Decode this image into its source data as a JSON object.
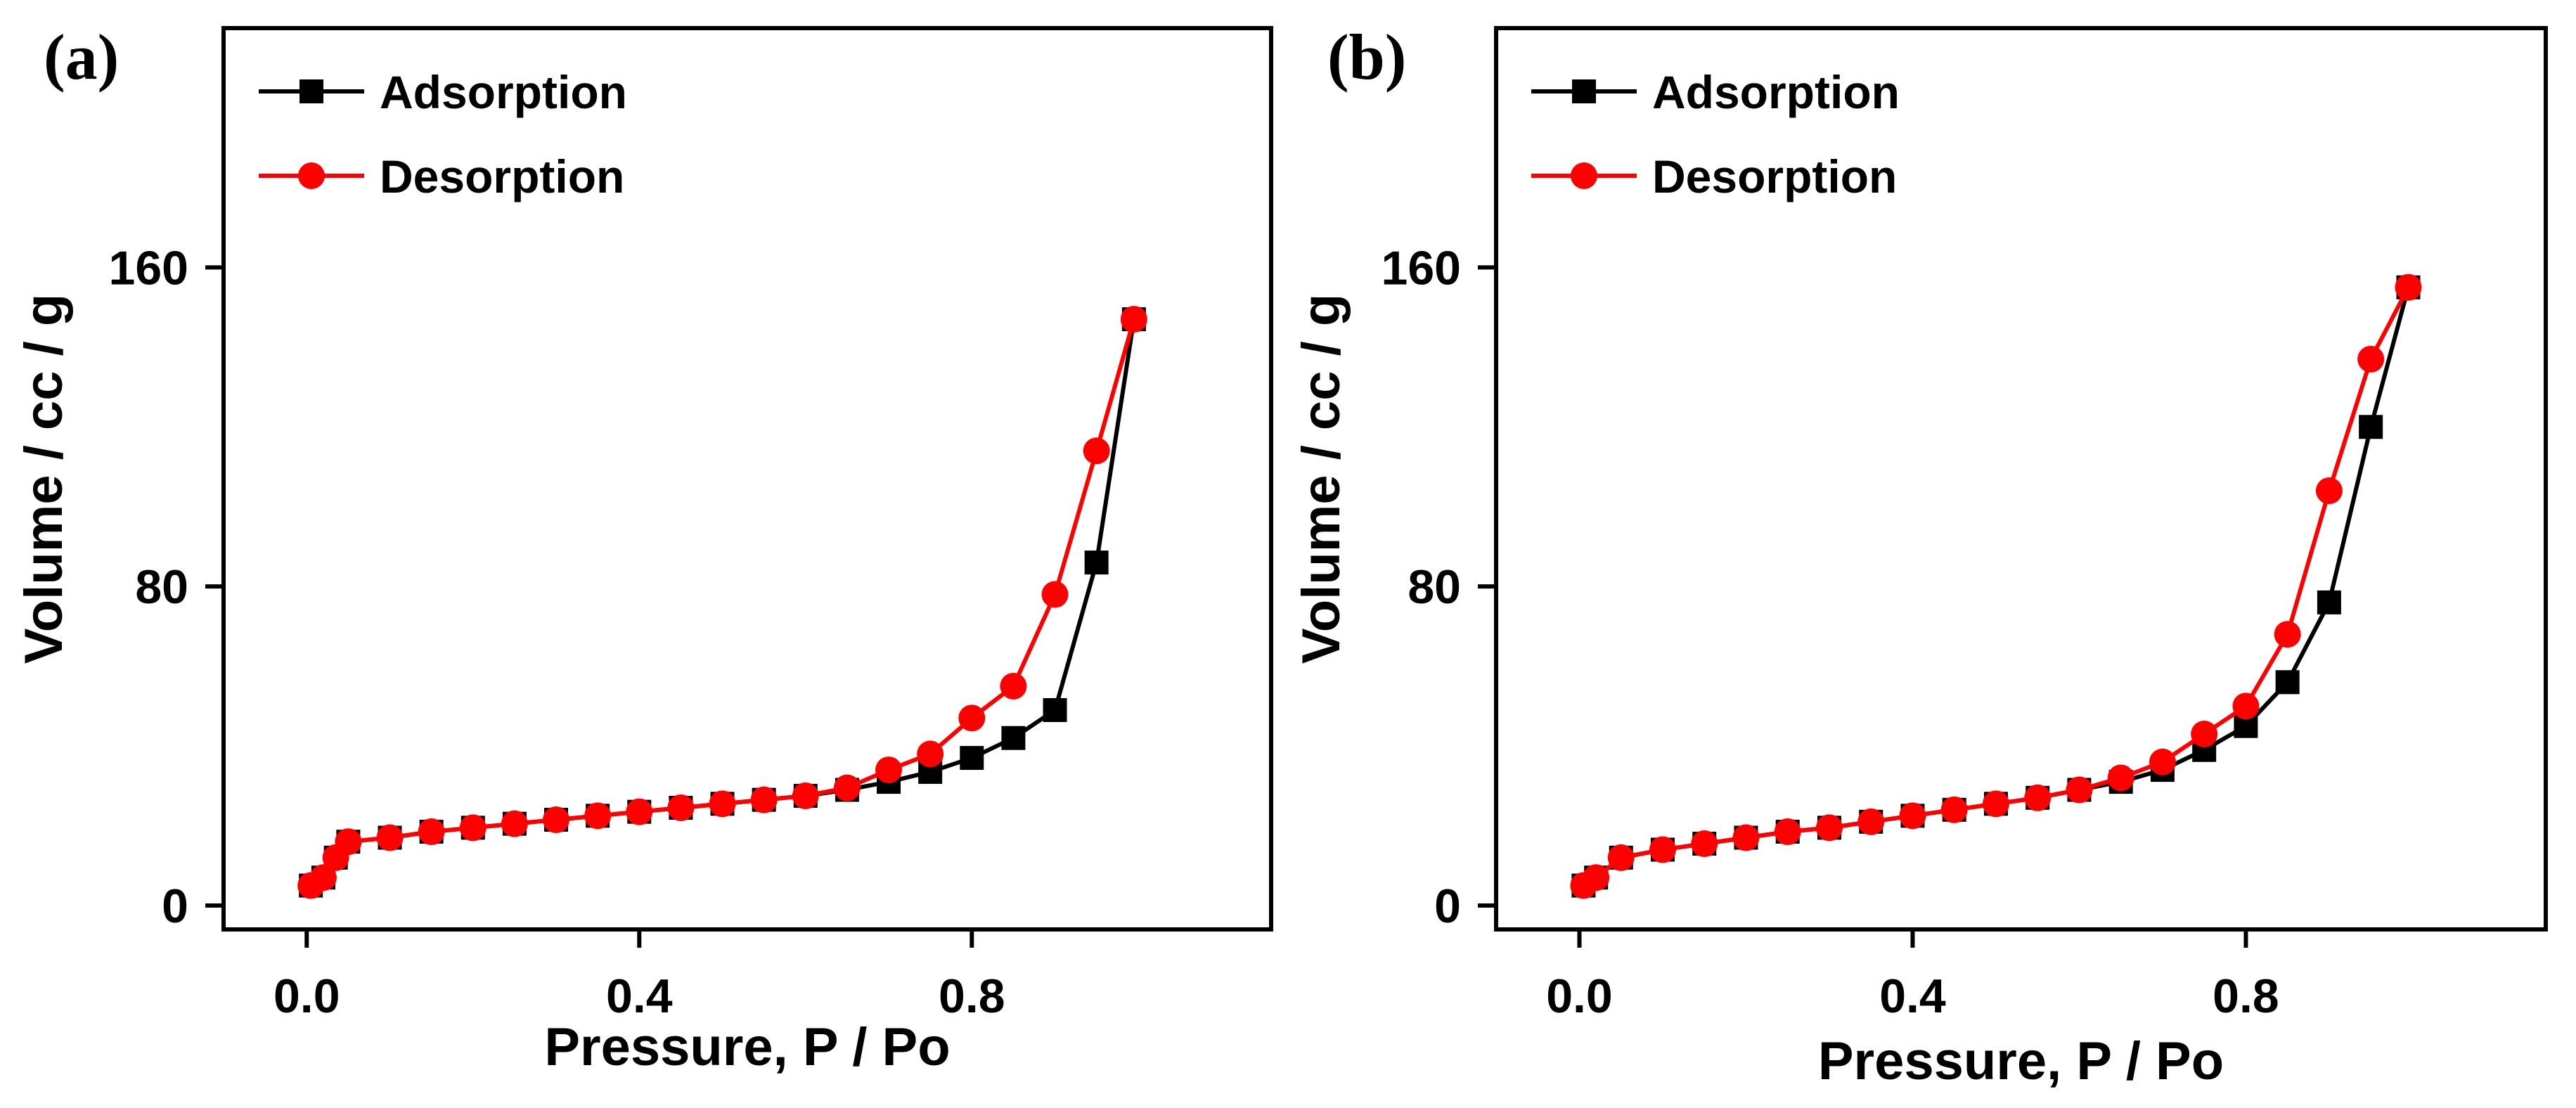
{
  "figure": {
    "panels": [
      {
        "label": "(a)"
      },
      {
        "label": "(b)"
      }
    ]
  },
  "chart_data": [
    {
      "type": "line",
      "panel_label": "(a)",
      "xlabel": "Pressure, P / Po",
      "ylabel": "Volume / cc / g",
      "xlim": [
        -0.1,
        1.16
      ],
      "ylim": [
        -6,
        220
      ],
      "xticks": [
        0.0,
        0.4,
        0.8
      ],
      "xtick_labels": [
        "0.0",
        "0.4",
        "0.8"
      ],
      "yticks": [
        0,
        80,
        160
      ],
      "ytick_labels": [
        "0",
        "80",
        "160"
      ],
      "legend_position": "top-left",
      "grid": false,
      "series": [
        {
          "name": "Adsorption",
          "color": "#000000",
          "marker": "square",
          "x": [
            0.005,
            0.02,
            0.035,
            0.05,
            0.1,
            0.15,
            0.2,
            0.25,
            0.3,
            0.35,
            0.4,
            0.45,
            0.5,
            0.55,
            0.6,
            0.65,
            0.7,
            0.75,
            0.8,
            0.85,
            0.9,
            0.95,
            0.995
          ],
          "y": [
            5,
            7,
            12,
            16,
            17,
            18.5,
            19.5,
            20.5,
            21.5,
            22.5,
            23.5,
            24.5,
            25.5,
            26.5,
            27.5,
            29,
            31,
            33.5,
            37,
            42,
            49,
            86,
            147
          ]
        },
        {
          "name": "Desorption",
          "color": "#ff0000",
          "marker": "circle",
          "x": [
            0.005,
            0.02,
            0.035,
            0.05,
            0.1,
            0.15,
            0.2,
            0.25,
            0.3,
            0.35,
            0.4,
            0.45,
            0.5,
            0.55,
            0.6,
            0.65,
            0.7,
            0.75,
            0.8,
            0.85,
            0.9,
            0.95,
            0.995
          ],
          "y": [
            5,
            7,
            12,
            16,
            17,
            18.5,
            19.5,
            20.5,
            21.5,
            22.5,
            23.5,
            24.5,
            25.5,
            26.5,
            27.5,
            29.5,
            34,
            38,
            47,
            55,
            78,
            114,
            147
          ]
        }
      ]
    },
    {
      "type": "line",
      "panel_label": "(b)",
      "xlabel": "Pressure, P / Po",
      "ylabel": "Volume / cc / g",
      "xlim": [
        -0.1,
        1.16
      ],
      "ylim": [
        -6,
        220
      ],
      "xticks": [
        0.0,
        0.4,
        0.8
      ],
      "xtick_labels": [
        "0.0",
        "0.4",
        "0.8"
      ],
      "yticks": [
        0,
        80,
        160
      ],
      "ytick_labels": [
        "0",
        "80",
        "160"
      ],
      "legend_position": "top-left",
      "grid": false,
      "series": [
        {
          "name": "Adsorption",
          "color": "#000000",
          "marker": "square",
          "x": [
            0.005,
            0.02,
            0.05,
            0.1,
            0.15,
            0.2,
            0.25,
            0.3,
            0.35,
            0.4,
            0.45,
            0.5,
            0.55,
            0.6,
            0.65,
            0.7,
            0.75,
            0.8,
            0.85,
            0.9,
            0.95,
            0.995
          ],
          "y": [
            5,
            7,
            12,
            14,
            15.5,
            17,
            18.5,
            19.5,
            21,
            22.5,
            24,
            25.5,
            27,
            29,
            31,
            34,
            39,
            45,
            56,
            76,
            120,
            155
          ]
        },
        {
          "name": "Desorption",
          "color": "#ff0000",
          "marker": "circle",
          "x": [
            0.005,
            0.02,
            0.05,
            0.1,
            0.15,
            0.2,
            0.25,
            0.3,
            0.35,
            0.4,
            0.45,
            0.5,
            0.55,
            0.6,
            0.65,
            0.7,
            0.75,
            0.8,
            0.85,
            0.9,
            0.95,
            0.995
          ],
          "y": [
            5,
            7,
            12,
            14,
            15.5,
            17,
            18.5,
            19.5,
            21,
            22.5,
            24,
            25.5,
            27,
            29,
            32,
            36,
            43,
            50,
            68,
            104,
            137,
            155
          ]
        }
      ]
    }
  ]
}
